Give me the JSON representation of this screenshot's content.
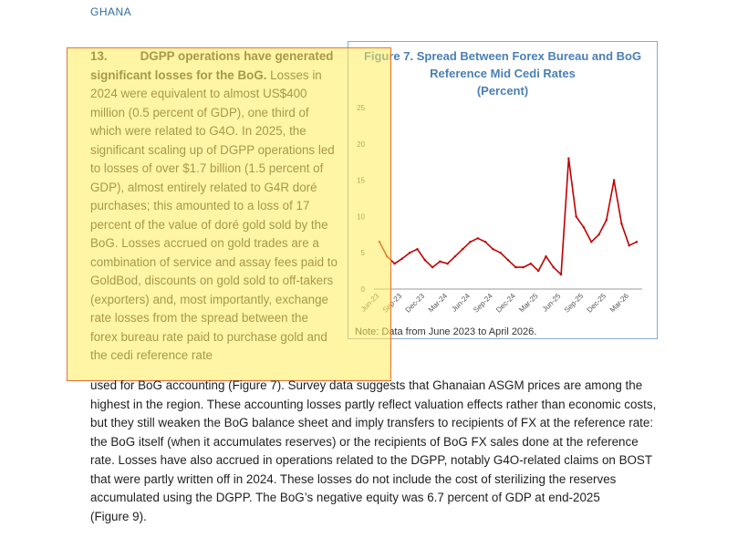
{
  "header": {
    "country": "GHANA"
  },
  "paragraph_13": {
    "number": "13.",
    "lead": "DGPP operations have generated significant losses for the BoG.",
    "text_top": " Losses in 2024 were equivalent to almost US$400 million (0.5 percent of GDP), one third of which were related to G4O. In 2025, the significant scaling up of DGPP operations led to losses of over $1.7 billion (1.5 percent of GDP), almost entirely related to G4R doré purchases; this amounted to a loss of 17 percent of the value of doré gold sold by the BoG. Losses accrued on gold trades are a combination of service and assay fees paid to GoldBod, discounts on gold sold to off-takers (exporters) and, most importantly, exchange rate losses from the spread between the forex bureau rate paid to purchase gold and the cedi reference rate",
    "text_bottom": "used for BoG accounting (Figure 7). Survey data suggests that Ghanaian ASGM prices are among the highest in the region. These accounting losses partly reflect valuation effects rather than economic costs, but they still weaken the BoG balance sheet and imply transfers to recipients of FX at the reference rate: the BoG itself (when it accumulates reserves) or the recipients of BoG FX sales done at the reference rate. Losses have also accrued in operations related to the DGPP, notably G4O-related claims on BOST that were partly written off in 2024. These losses do not include the cost of sterilizing the reserves accumulated using the DGPP. The BoG’s negative equity was 6.7 percent of GDP at end-2025",
    "text_tail": "(Figure 9)."
  },
  "figure": {
    "title_line1": "Figure 7. Spread Between Forex Bureau and BoG",
    "title_line2": "Reference Mid Cedi Rates",
    "title_line3": "(Percent)",
    "note": "Note: Data from June 2023 to April 2026.",
    "line_color": "#c00000",
    "axis_color": "#999999"
  },
  "chart_data": {
    "type": "line",
    "title": "Figure 7. Spread Between Forex Bureau and BoG Reference Mid Cedi Rates (Percent)",
    "xlabel": "",
    "ylabel": "",
    "ylim": [
      0,
      25
    ],
    "yticks": [
      0,
      5,
      10,
      15,
      20,
      25
    ],
    "xticks": [
      "Jun-23",
      "Sep-23",
      "Dec-23",
      "Mar-24",
      "Jun-24",
      "Sep-24",
      "Dec-24",
      "Mar-25",
      "Jun-25",
      "Sep-25",
      "Dec-25",
      "Mar-26"
    ],
    "x_range": [
      "Jun-23",
      "Apr-26"
    ],
    "grid": false,
    "series": [
      {
        "x": [
          "Jun-23",
          "Jul-23",
          "Aug-23",
          "Sep-23",
          "Oct-23",
          "Nov-23",
          "Dec-23",
          "Jan-24",
          "Feb-24",
          "Mar-24",
          "Apr-24",
          "May-24",
          "Jun-24",
          "Jul-24",
          "Aug-24",
          "Sep-24",
          "Oct-24",
          "Nov-24",
          "Dec-24",
          "Jan-25",
          "Feb-25",
          "Mar-25",
          "Apr-25",
          "May-25",
          "Jun-25",
          "Jul-25",
          "Aug-25",
          "Sep-25",
          "Oct-25",
          "Nov-25",
          "Dec-25",
          "Jan-26",
          "Feb-26",
          "Mar-26",
          "Apr-26"
        ],
        "values": [
          6.5,
          4.5,
          3.5,
          4.2,
          5.0,
          5.5,
          4.0,
          3.0,
          3.8,
          3.5,
          4.5,
          5.5,
          6.5,
          7.0,
          6.5,
          5.5,
          5.0,
          4.0,
          3.0,
          3.0,
          3.5,
          2.5,
          4.5,
          3.0,
          2.0,
          18.0,
          10.0,
          8.5,
          6.5,
          7.5,
          9.5,
          15.0,
          9.0,
          6.0,
          6.5
        ]
      }
    ]
  }
}
